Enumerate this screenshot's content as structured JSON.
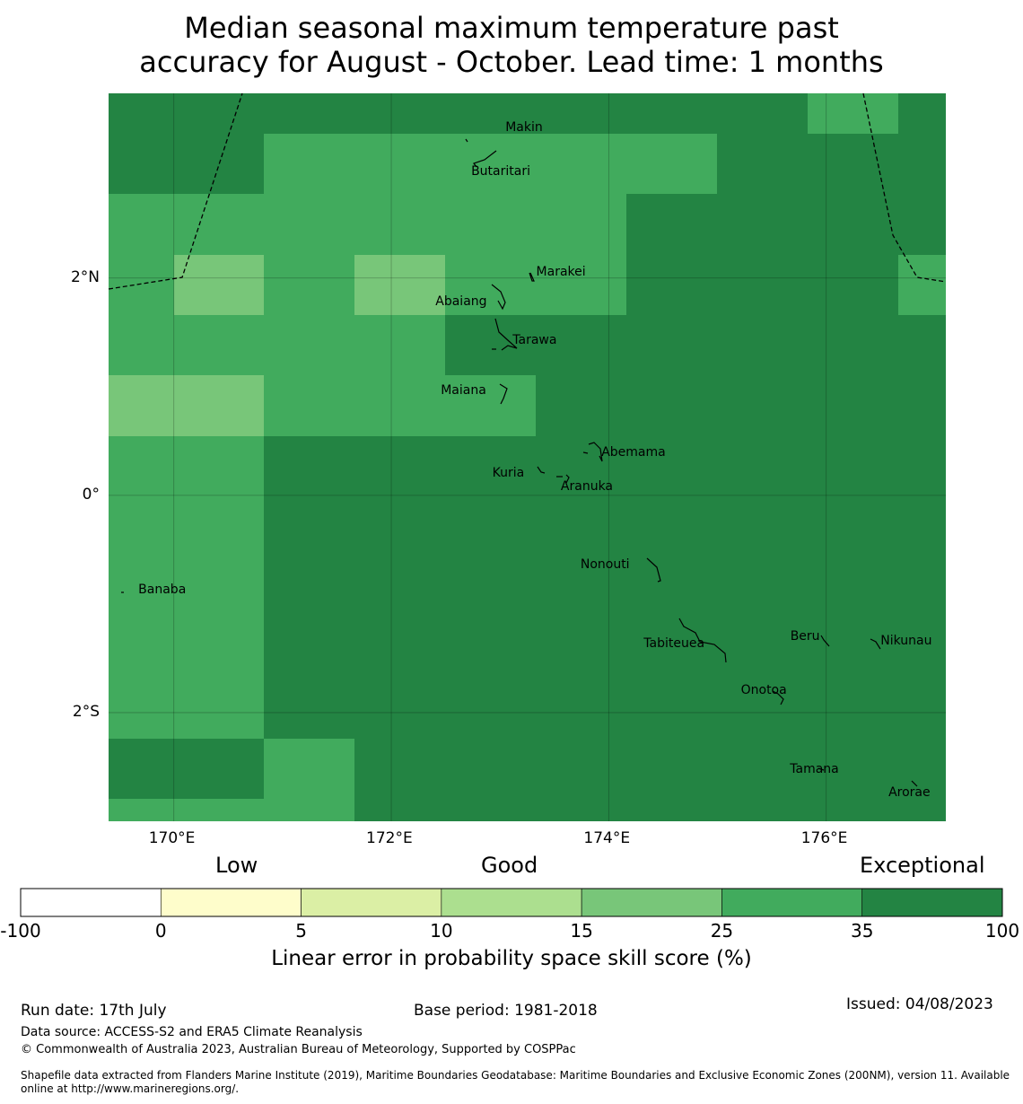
{
  "title_line1": "Median seasonal maximum temperature past",
  "title_line2": "accuracy for August - October. Lead time: 1 months",
  "map": {
    "lon_range": [
      169.4,
      177.1
    ],
    "lat_range": [
      -3.0,
      3.7
    ],
    "lon_ticks": [
      {
        "value": 170,
        "label": "170°E"
      },
      {
        "value": 172,
        "label": "172°E"
      },
      {
        "value": 174,
        "label": "174°E"
      },
      {
        "value": 176,
        "label": "176°E"
      }
    ],
    "lat_ticks": [
      {
        "value": 2,
        "label": "2°N"
      },
      {
        "value": 0,
        "label": "0°"
      },
      {
        "value": -2,
        "label": "2°S"
      }
    ],
    "skill_levels": [
      {
        "range": "-100 to 0",
        "color": "#ffffff"
      },
      {
        "range": "0 to 5",
        "color": "#fefdcb"
      },
      {
        "range": "5 to 10",
        "color": "#dbefa5"
      },
      {
        "range": "10 to 15",
        "color": "#acdf8f"
      },
      {
        "range": "15 to 25",
        "color": "#78c679"
      },
      {
        "range": "25 to 35",
        "color": "#41ab5d"
      },
      {
        "range": "35 to 100",
        "color": "#238443"
      }
    ],
    "islands": [
      {
        "name": "Makin",
        "lon": 173.0,
        "lat": 3.35
      },
      {
        "name": "Butaritari",
        "lon": 172.9,
        "lat": 3.08
      },
      {
        "name": "Marakei",
        "lon": 173.3,
        "lat": 2.0
      },
      {
        "name": "Abaiang",
        "lon": 173.05,
        "lat": 1.85
      },
      {
        "name": "Tarawa",
        "lon": 173.05,
        "lat": 1.45
      },
      {
        "name": "Maiana",
        "lon": 173.0,
        "lat": 0.95
      },
      {
        "name": "Abemama",
        "lon": 173.85,
        "lat": 0.4
      },
      {
        "name": "Kuria",
        "lon": 173.4,
        "lat": 0.22
      },
      {
        "name": "Aranuka",
        "lon": 173.6,
        "lat": 0.18
      },
      {
        "name": "Nonouti",
        "lon": 174.4,
        "lat": -0.65
      },
      {
        "name": "Banaba",
        "lon": 169.55,
        "lat": -0.87
      },
      {
        "name": "Tabiteuea",
        "lon": 174.8,
        "lat": -1.35
      },
      {
        "name": "Beru",
        "lon": 176.0,
        "lat": -1.33
      },
      {
        "name": "Nikunau",
        "lon": 176.45,
        "lat": -1.37
      },
      {
        "name": "Onotoa",
        "lon": 175.57,
        "lat": -1.83
      },
      {
        "name": "Tamana",
        "lon": 175.98,
        "lat": -2.5
      },
      {
        "name": "Arorae",
        "lon": 176.82,
        "lat": -2.65
      }
    ]
  },
  "colorbar": {
    "categories": [
      {
        "label": "Low"
      },
      {
        "label": "Good"
      },
      {
        "label": "Exceptional"
      }
    ],
    "tick_labels": [
      "-100",
      "0",
      "5",
      "10",
      "15",
      "25",
      "35",
      "100"
    ],
    "axis_label": "Linear error in probability space skill score (%)"
  },
  "footer": {
    "run_date": "Run date: 17th July",
    "base_period": "Base period: 1981-2018",
    "issued": "Issued: 04/08/2023",
    "data_source": "Data source: ACCESS-S2 and ERA5 Climate Reanalysis",
    "copyright": "© Commonwealth of Australia 2023, Australian Bureau of Meteorology, Supported by COSPPac",
    "shapefile_line1": "Shapefile data extracted from Flanders Marine Institute (2019), Maritime Boundaries Geodatabase: Maritime Boundaries and Exclusive Economic Zones (200NM), version 11. Available",
    "shapefile_line2": "online at http://www.marineregions.org/."
  }
}
